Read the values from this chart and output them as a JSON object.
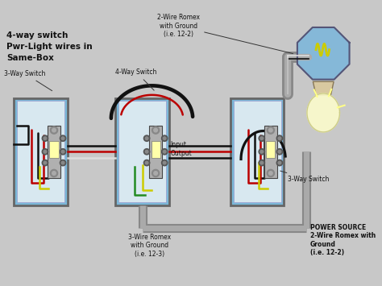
{
  "bg_color": "#c8c8c8",
  "title_lines": [
    "4-way switch",
    "Pwr-Light wires in",
    "Same-Box"
  ],
  "title_fontsize": 7.5,
  "wire_colors": {
    "black": "#111111",
    "red": "#bb0000",
    "white": "#dddddd",
    "green": "#228B22",
    "yellow": "#cccc00",
    "gray_light": "#bbbbbb",
    "gray_dark": "#888888",
    "gray_conduit": "#aaaaaa"
  },
  "box_color": "#7ab8d8",
  "box_edge": "#666666",
  "switch_body": "#b0b0b0",
  "switch_edge": "#444444",
  "switch_light": "#ffffaa",
  "screw_color": "#888888",
  "label_fontsize": 5.5,
  "label_color": "#111111"
}
